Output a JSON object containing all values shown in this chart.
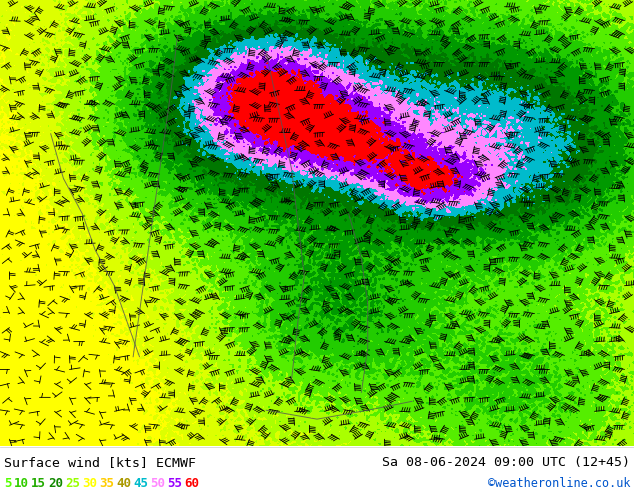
{
  "title_left": "Surface wind [kts] ECMWF",
  "title_right": "Sa 08-06-2024 09:00 UTC (12+45)",
  "credit": "©weatheronline.co.uk",
  "scale_values": [
    5,
    10,
    15,
    20,
    25,
    30,
    35,
    40,
    45,
    50,
    55,
    60
  ],
  "map_level_colors": [
    "#aaff00",
    "#77ee00",
    "#55cc00",
    "#33aa00",
    "#228800",
    "#ffff00",
    "#ffdd00",
    "#ffaa00",
    "#00cccc",
    "#ff88ff",
    "#9900ff",
    "#ff0000"
  ],
  "legend_colors": [
    "#55ff00",
    "#33cc00",
    "#22aa00",
    "#118800",
    "#99ff00",
    "#ffff00",
    "#ffcc00",
    "#aa9900",
    "#00bbcc",
    "#ff88ff",
    "#9900ff",
    "#ff0000"
  ],
  "bg_color": "#ffffff",
  "figsize": [
    6.34,
    4.9
  ],
  "dpi": 100
}
